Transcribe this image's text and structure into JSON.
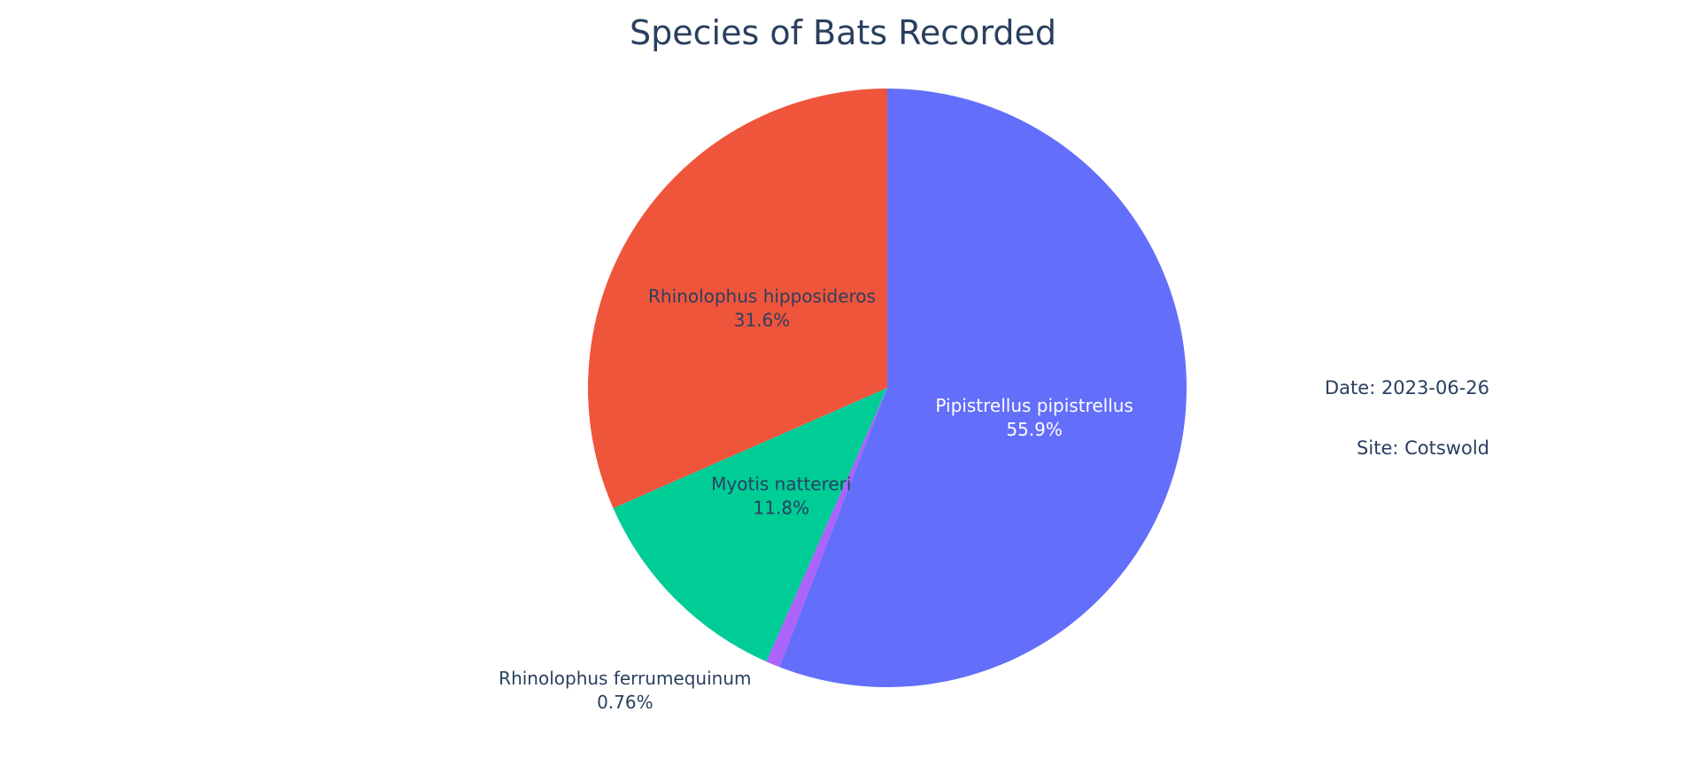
{
  "chart_data": {
    "type": "pie",
    "title": "Species of Bats Recorded",
    "labels": [
      "Pipistrellus pipistrellus",
      "Rhinolophus ferrumequinum",
      "Myotis nattereri",
      "Rhinolophus hipposideros"
    ],
    "percent_labels": [
      "55.9%",
      "0.76%",
      "11.8%",
      "31.6%"
    ],
    "values": [
      55.9,
      0.76,
      11.8,
      31.6
    ],
    "colors": [
      "#636efa",
      "#ab63fa",
      "#00cc96",
      "#ef553b"
    ],
    "label_text_colors": [
      "#ffffff",
      "#2a3f5f",
      "#2a3f5f",
      "#2a3f5f"
    ],
    "direction": "clockwise",
    "start_position": "top",
    "show_legend": false
  },
  "annotations": {
    "date": "Date: 2023-06-26",
    "site": "Site: Cotswold"
  },
  "colors": {
    "title": "#2a3f5f",
    "annotation_text": "#2a3f5f",
    "background": "#ffffff"
  }
}
